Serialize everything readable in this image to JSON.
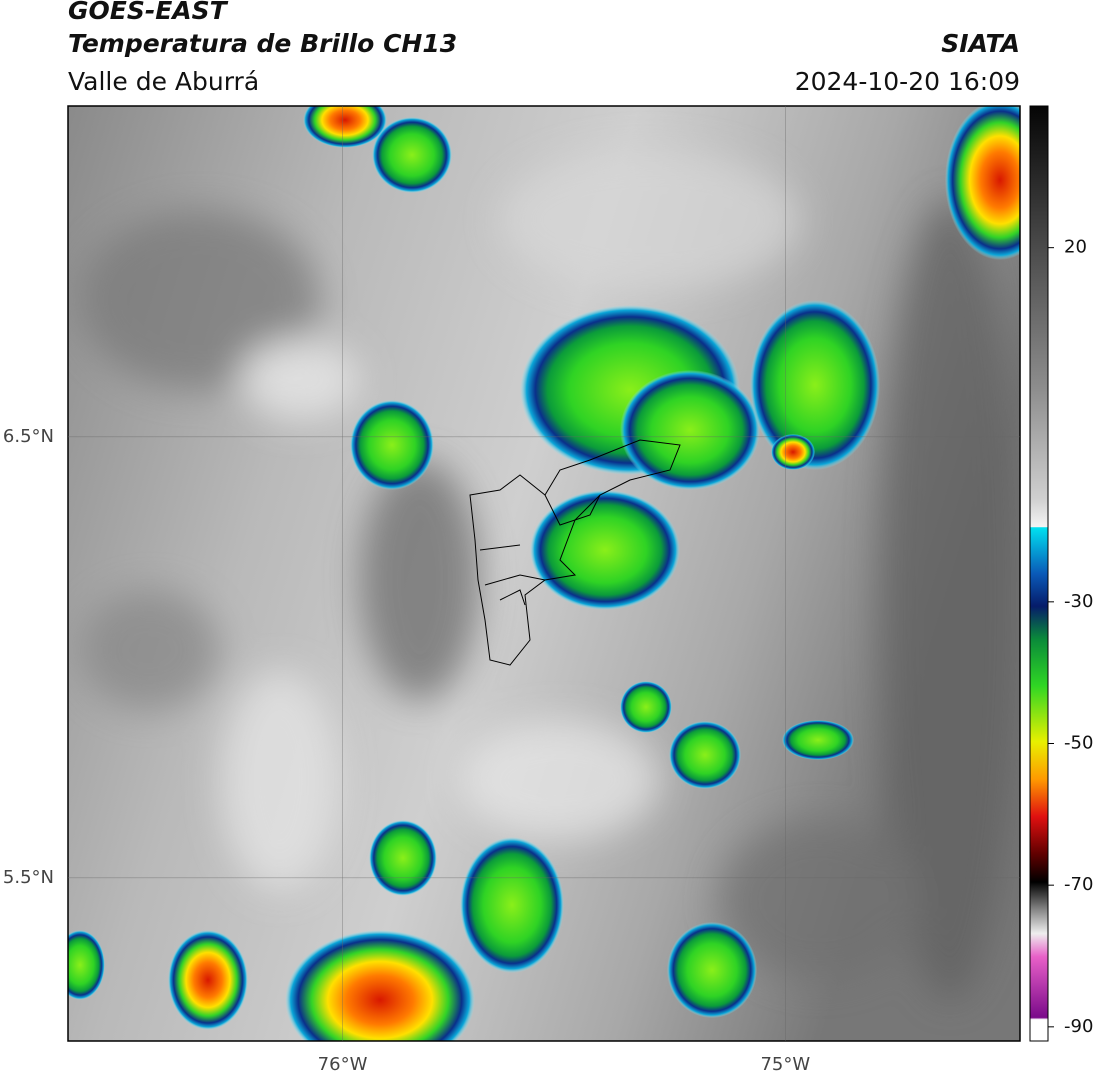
{
  "header": {
    "title": "GOES-EAST",
    "subtitle": "Temperatura de Brillo CH13",
    "source": "SIATA",
    "region": "Valle de Aburrá",
    "datetime": "2024-10-20 16:09"
  },
  "chart_data": {
    "type": "map",
    "xlim": [
      -76.62,
      -74.47
    ],
    "ylim": [
      5.13,
      7.25
    ],
    "xticks": [
      {
        "value": -76,
        "label": "76°W"
      },
      {
        "value": -75,
        "label": "75°W"
      }
    ],
    "yticks": [
      {
        "value": 5.5,
        "label": "5.5°N"
      },
      {
        "value": 6.5,
        "label": "6.5°N"
      }
    ],
    "grid": true,
    "colorbar": {
      "lim": [
        -92,
        40
      ],
      "ticks": [
        20,
        -30,
        -50,
        -70,
        -90
      ]
    }
  }
}
